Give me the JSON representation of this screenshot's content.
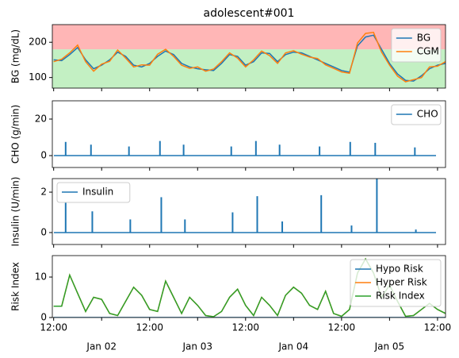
{
  "chart_data": [
    {
      "type": "line",
      "title": "adolescent#001",
      "y_label": "BG (mg/dL)",
      "x": [
        "Jan 01 12:00",
        "Jan 01 14:00",
        "Jan 01 16:00",
        "Jan 01 18:00",
        "Jan 01 20:00",
        "Jan 01 22:00",
        "Jan 02 00:00",
        "Jan 02 02:00",
        "Jan 02 04:00",
        "Jan 02 06:00",
        "Jan 02 08:00",
        "Jan 02 10:00",
        "Jan 02 12:00",
        "Jan 02 14:00",
        "Jan 02 16:00",
        "Jan 02 18:00",
        "Jan 02 20:00",
        "Jan 02 22:00",
        "Jan 03 00:00",
        "Jan 03 02:00",
        "Jan 03 04:00",
        "Jan 03 06:00",
        "Jan 03 08:00",
        "Jan 03 10:00",
        "Jan 03 12:00",
        "Jan 03 14:00",
        "Jan 03 16:00",
        "Jan 03 18:00",
        "Jan 03 20:00",
        "Jan 03 22:00",
        "Jan 04 00:00",
        "Jan 04 02:00",
        "Jan 04 04:00",
        "Jan 04 06:00",
        "Jan 04 08:00",
        "Jan 04 10:00",
        "Jan 04 12:00",
        "Jan 04 14:00",
        "Jan 04 16:00",
        "Jan 04 18:00",
        "Jan 04 20:00",
        "Jan 04 22:00",
        "Jan 05 00:00",
        "Jan 05 02:00",
        "Jan 05 04:00",
        "Jan 05 06:00",
        "Jan 05 08:00",
        "Jan 05 10:00",
        "Jan 05 12:00",
        "Jan 05 14:00"
      ],
      "series": [
        {
          "name": "BG",
          "color": "#1f77b4",
          "values": [
            150,
            148,
            165,
            185,
            150,
            125,
            135,
            150,
            172,
            160,
            135,
            130,
            140,
            160,
            175,
            165,
            140,
            130,
            125,
            122,
            120,
            140,
            165,
            160,
            135,
            145,
            170,
            168,
            145,
            165,
            172,
            170,
            160,
            150,
            140,
            130,
            120,
            115,
            190,
            215,
            220,
            180,
            140,
            110,
            92,
            90,
            105,
            125,
            135,
            140
          ]
        },
        {
          "name": "CGM",
          "color": "#ff7f0e",
          "values": [
            145,
            152,
            170,
            192,
            145,
            118,
            138,
            146,
            178,
            155,
            130,
            136,
            135,
            166,
            180,
            160,
            135,
            126,
            130,
            118,
            124,
            145,
            170,
            155,
            130,
            150,
            175,
            162,
            140,
            170,
            176,
            166,
            158,
            154,
            136,
            126,
            116,
            112,
            198,
            225,
            228,
            172,
            135,
            104,
            88,
            94,
            100,
            130,
            132,
            145
          ]
        }
      ],
      "ylim": [
        70,
        250
      ],
      "yticks": [
        100,
        200
      ],
      "bands": [
        {
          "from": 70,
          "to": 180,
          "color": "#c3f0c3"
        },
        {
          "from": 180,
          "to": 250,
          "color": "#ffb6b6"
        }
      ],
      "legend": "upper right"
    },
    {
      "type": "stem",
      "y_label": "CHO (g/min)",
      "x": [
        "Jan 01 15:00",
        "Jan 01 21:20",
        "Jan 02 06:50",
        "Jan 02 14:35",
        "Jan 02 20:30",
        "Jan 03 08:25",
        "Jan 03 14:35",
        "Jan 03 20:30",
        "Jan 04 06:30",
        "Jan 04 14:10",
        "Jan 04 20:25",
        "Jan 05 06:20"
      ],
      "series": [
        {
          "name": "CHO",
          "color": "#1f77b4",
          "values": [
            7.5,
            6,
            5,
            8,
            6,
            5,
            8,
            6,
            5,
            7.5,
            7,
            4.5
          ]
        }
      ],
      "ylim": [
        -6.5,
        30
      ],
      "yticks": [
        0,
        20
      ],
      "legend": "upper right"
    },
    {
      "type": "stem",
      "y_label": "Insulin (U/min)",
      "x": [
        "Jan 01 15:00",
        "Jan 01 21:40",
        "Jan 02 07:10",
        "Jan 02 14:55",
        "Jan 02 20:50",
        "Jan 03 08:45",
        "Jan 03 14:55",
        "Jan 03 21:10",
        "Jan 04 06:55",
        "Jan 04 14:30",
        "Jan 04 20:50",
        "Jan 05 06:35"
      ],
      "series": [
        {
          "name": "Insulin",
          "color": "#1f77b4",
          "values": [
            1.5,
            1.05,
            0.65,
            1.75,
            0.65,
            1.0,
            1.8,
            0.55,
            1.85,
            0.35,
            2.8,
            0.15
          ]
        }
      ],
      "ylim": [
        -0.59,
        2.67
      ],
      "yticks": [
        0,
        2
      ],
      "legend": "upper left"
    },
    {
      "type": "line",
      "y_label": "Risk Index",
      "x": [
        "Jan 01 12:00",
        "Jan 01 14:00",
        "Jan 01 16:00",
        "Jan 01 18:00",
        "Jan 01 20:00",
        "Jan 01 22:00",
        "Jan 02 00:00",
        "Jan 02 02:00",
        "Jan 02 04:00",
        "Jan 02 06:00",
        "Jan 02 08:00",
        "Jan 02 10:00",
        "Jan 02 12:00",
        "Jan 02 14:00",
        "Jan 02 16:00",
        "Jan 02 18:00",
        "Jan 02 20:00",
        "Jan 02 22:00",
        "Jan 03 00:00",
        "Jan 03 02:00",
        "Jan 03 04:00",
        "Jan 03 06:00",
        "Jan 03 08:00",
        "Jan 03 10:00",
        "Jan 03 12:00",
        "Jan 03 14:00",
        "Jan 03 16:00",
        "Jan 03 18:00",
        "Jan 03 20:00",
        "Jan 03 22:00",
        "Jan 04 00:00",
        "Jan 04 02:00",
        "Jan 04 04:00",
        "Jan 04 06:00",
        "Jan 04 08:00",
        "Jan 04 10:00",
        "Jan 04 12:00",
        "Jan 04 14:00",
        "Jan 04 16:00",
        "Jan 04 18:00",
        "Jan 04 20:00",
        "Jan 04 22:00",
        "Jan 05 00:00",
        "Jan 05 02:00",
        "Jan 05 04:00",
        "Jan 05 06:00",
        "Jan 05 08:00",
        "Jan 05 10:00",
        "Jan 05 12:00",
        "Jan 05 14:00"
      ],
      "series": [
        {
          "name": "Hypo Risk",
          "color": "#1f77b4",
          "values": [
            0,
            0,
            0,
            0,
            0,
            0,
            0,
            0,
            0,
            0,
            0,
            0,
            0,
            0,
            0,
            0,
            0,
            0,
            0,
            0,
            0,
            0,
            0,
            0,
            0,
            0,
            0,
            0,
            0,
            0,
            0,
            0,
            0,
            0,
            0,
            0,
            0,
            0,
            0,
            0,
            0,
            0,
            0,
            0,
            0,
            0,
            0,
            0,
            0,
            0
          ]
        },
        {
          "name": "Hyper Risk",
          "color": "#ff7f0e",
          "values": [
            2.8,
            2.8,
            10.5,
            6,
            1.5,
            5,
            4.5,
            1,
            0.5,
            4,
            7.5,
            5.5,
            2,
            1.5,
            9,
            5,
            1,
            5,
            3,
            0.5,
            0.2,
            1.5,
            5,
            7,
            3,
            0.5,
            5,
            3,
            0.5,
            5.5,
            7.5,
            6,
            3,
            2,
            6.5,
            1,
            0.3,
            2,
            11,
            14.5,
            11,
            5,
            8,
            4,
            0.3,
            0.5,
            2,
            3.5,
            2,
            1
          ]
        },
        {
          "name": "Risk Index",
          "color": "#2ca02c",
          "values": [
            2.8,
            2.8,
            10.5,
            6,
            1.5,
            5,
            4.5,
            1,
            0.5,
            4,
            7.5,
            5.5,
            2,
            1.5,
            9,
            5,
            1,
            5,
            3,
            0.5,
            0.2,
            1.5,
            5,
            7,
            3,
            0.5,
            5,
            3,
            0.5,
            5.5,
            7.5,
            6,
            3,
            2,
            6.5,
            1,
            0.3,
            2,
            11,
            14.5,
            11,
            5,
            8,
            4,
            0.3,
            0.5,
            2,
            3.5,
            2,
            1
          ]
        }
      ],
      "ylim": [
        0,
        15.3
      ],
      "yticks": [
        0,
        10
      ],
      "legend": "upper right",
      "xlim": [
        "Jan 01 11:40",
        "Jan 05 14:00"
      ],
      "xticks": [
        {
          "value": "Jan 01 12:00",
          "label": "12:00"
        },
        {
          "value": "Jan 02 00:00",
          "label": "Jan 02"
        },
        {
          "value": "Jan 02 12:00",
          "label": "12:00"
        },
        {
          "value": "Jan 03 00:00",
          "label": "Jan 03"
        },
        {
          "value": "Jan 03 12:00",
          "label": "12:00"
        },
        {
          "value": "Jan 04 00:00",
          "label": "Jan 04"
        },
        {
          "value": "Jan 04 12:00",
          "label": "12:00"
        },
        {
          "value": "Jan 05 00:00",
          "label": "Jan 05"
        },
        {
          "value": "Jan 05 12:00",
          "label": "12:00"
        }
      ]
    }
  ]
}
